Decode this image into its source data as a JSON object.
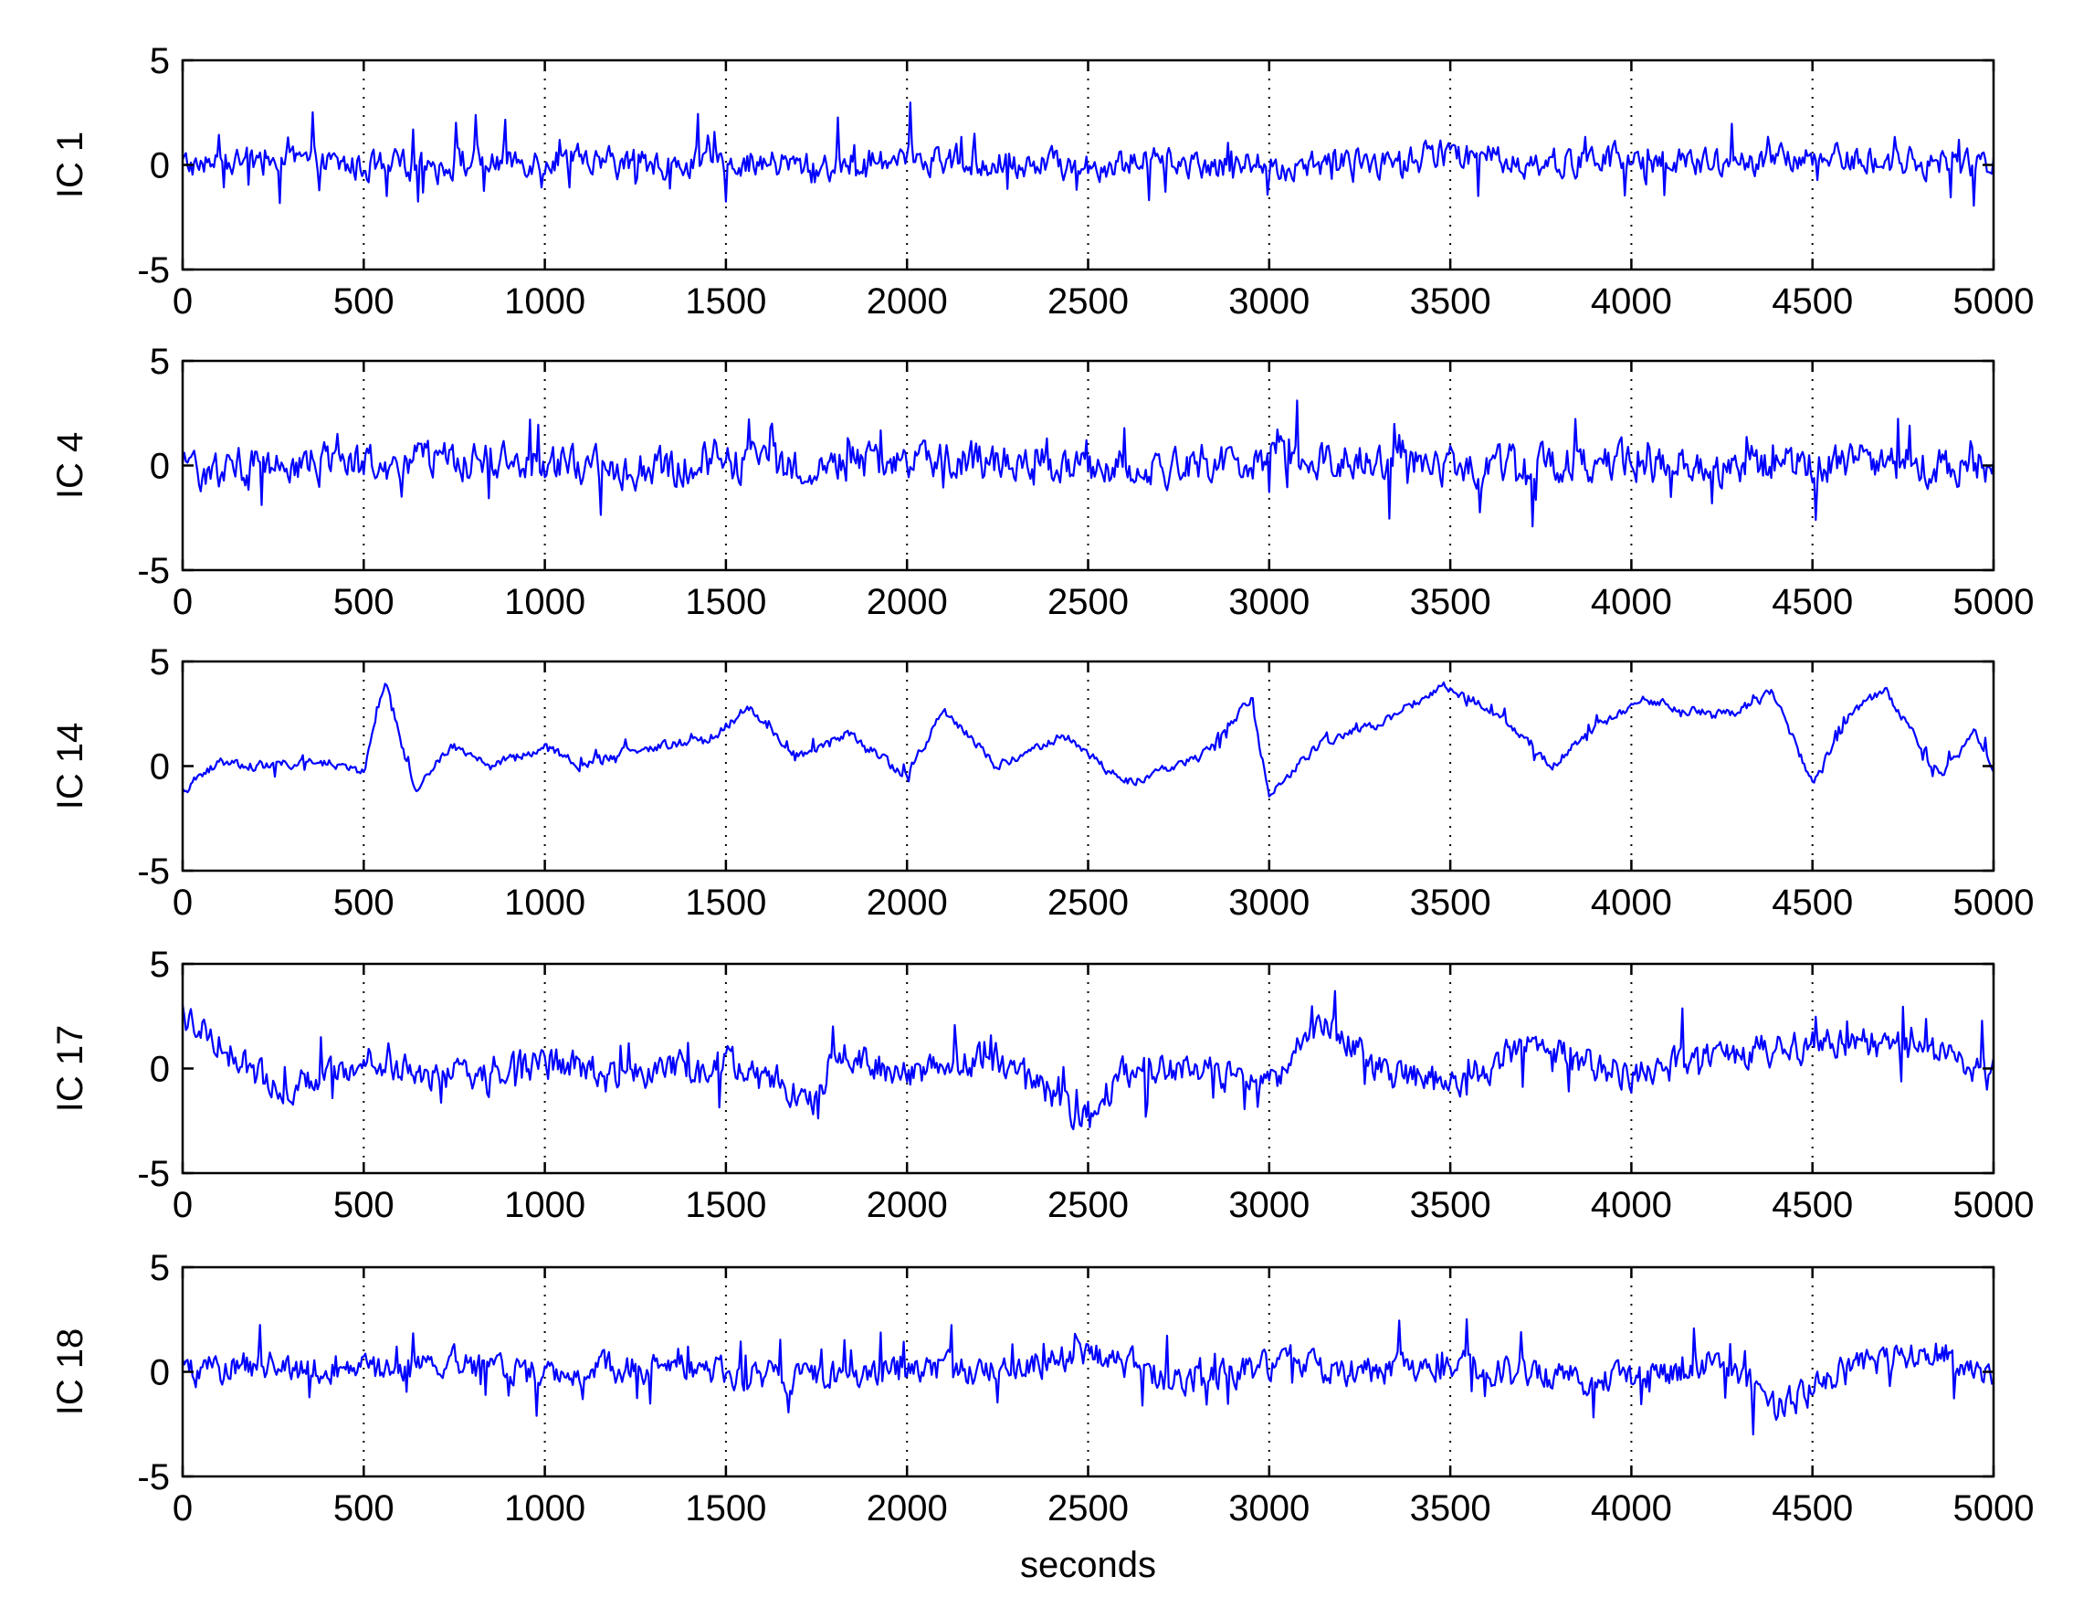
{
  "chart_data": [
    {
      "type": "line",
      "ylabel": "IC 1",
      "xlabel": "",
      "xlim": [
        0,
        5000
      ],
      "ylim": [
        -5,
        5
      ],
      "xticks": [
        "0",
        "500",
        "1000",
        "1500",
        "2000",
        "2500",
        "3000",
        "3500",
        "4000",
        "4500",
        "5000"
      ],
      "yticks": [
        "5",
        "0",
        "-5"
      ],
      "grid": "dotted vertical at x ticks",
      "series": [
        {
          "color": "#0000ff",
          "noise_amplitude": 1.1,
          "x": [
            0,
            250,
            500,
            750,
            1000,
            1250,
            1500,
            1750,
            2000,
            2250,
            2500,
            2750,
            3000,
            3250,
            3500,
            3750,
            4000,
            4250,
            4500,
            4750,
            5000
          ],
          "y": [
            0.0,
            0.2,
            -0.1,
            0.1,
            0.3,
            0.0,
            0.2,
            -0.1,
            0.4,
            0.1,
            0.0,
            0.2,
            -0.1,
            0.0,
            0.5,
            0.1,
            0.2,
            0.0,
            0.3,
            0.2,
            0.0
          ]
        }
      ]
    },
    {
      "type": "line",
      "ylabel": "IC 4",
      "xlabel": "",
      "xlim": [
        0,
        5000
      ],
      "ylim": [
        -5,
        5
      ],
      "xticks": [
        "0",
        "500",
        "1000",
        "1500",
        "2000",
        "2500",
        "3000",
        "3500",
        "4000",
        "4500",
        "5000"
      ],
      "yticks": [
        "5",
        "0",
        "-5"
      ],
      "grid": "dotted vertical at x ticks",
      "series": [
        {
          "color": "#0000ff",
          "noise_amplitude": 1.4,
          "x": [
            0,
            250,
            500,
            750,
            1000,
            1250,
            1500,
            1750,
            2000,
            2250,
            2500,
            2750,
            3000,
            3250,
            3500,
            3750,
            4000,
            4250,
            4500,
            4750,
            5000
          ],
          "y": [
            -0.3,
            0.2,
            0.0,
            0.3,
            0.1,
            -0.2,
            0.1,
            0.0,
            0.3,
            0.2,
            -0.1,
            0.0,
            0.4,
            0.3,
            0.0,
            0.1,
            0.2,
            0.0,
            0.2,
            0.1,
            0.0
          ]
        }
      ]
    },
    {
      "type": "line",
      "ylabel": "IC 14",
      "xlabel": "",
      "xlim": [
        0,
        5000
      ],
      "ylim": [
        -5,
        5
      ],
      "xticks": [
        "0",
        "500",
        "1000",
        "1500",
        "2000",
        "2500",
        "3000",
        "3500",
        "4000",
        "4500",
        "5000"
      ],
      "yticks": [
        "5",
        "0",
        "-5"
      ],
      "grid": "dotted vertical at x ticks",
      "series": [
        {
          "color": "#0000ff",
          "noise_amplitude": 0.35,
          "x": [
            0,
            100,
            200,
            300,
            400,
            500,
            560,
            640,
            740,
            850,
            1000,
            1100,
            1200,
            1320,
            1450,
            1560,
            1700,
            1840,
            2000,
            2100,
            2250,
            2430,
            2600,
            2800,
            2950,
            3000,
            3150,
            3300,
            3480,
            3620,
            3780,
            3890,
            4030,
            4150,
            4280,
            4390,
            4500,
            4600,
            4700,
            4850,
            4950,
            5000
          ],
          "y": [
            -1.2,
            0.2,
            0.0,
            0.1,
            0.2,
            -0.3,
            4.0,
            -1.2,
            1.0,
            0.0,
            0.9,
            0.0,
            0.6,
            1.0,
            1.2,
            2.8,
            0.5,
            1.6,
            -0.5,
            2.7,
            0.0,
            1.5,
            -0.8,
            0.3,
            3.2,
            -1.3,
            1.2,
            2.0,
            3.9,
            2.6,
            0.0,
            1.7,
            3.2,
            2.7,
            2.5,
            3.5,
            -0.8,
            2.4,
            3.7,
            -0.5,
            1.6,
            0.0
          ]
        }
      ]
    },
    {
      "type": "line",
      "ylabel": "IC 17",
      "xlabel": "",
      "xlim": [
        0,
        5000
      ],
      "ylim": [
        -5,
        5
      ],
      "xticks": [
        "0",
        "500",
        "1000",
        "1500",
        "2000",
        "2500",
        "3000",
        "3500",
        "4000",
        "4500",
        "5000"
      ],
      "yticks": [
        "5",
        "0",
        "-5"
      ],
      "grid": "dotted vertical at x ticks",
      "series": [
        {
          "color": "#0000ff",
          "noise_amplitude": 1.2,
          "x": [
            0,
            50,
            150,
            250,
            500,
            700,
            1000,
            1250,
            1500,
            1750,
            1800,
            2000,
            2250,
            2490,
            2600,
            2800,
            3000,
            3150,
            3300,
            3500,
            3700,
            4000,
            4400,
            4700,
            5000
          ],
          "y": [
            2.5,
            2.0,
            0.5,
            -1.0,
            0.5,
            -0.5,
            0.3,
            -0.3,
            0.5,
            -1.5,
            0.8,
            -0.3,
            0.5,
            -2.5,
            0.0,
            0.0,
            -1.0,
            2.5,
            -0.2,
            -0.8,
            1.0,
            -0.3,
            1.0,
            1.2,
            0.0
          ]
        }
      ]
    },
    {
      "type": "line",
      "ylabel": "IC 18",
      "xlabel": "seconds",
      "xlim": [
        0,
        5000
      ],
      "ylim": [
        -5,
        5
      ],
      "xticks": [
        "0",
        "500",
        "1000",
        "1500",
        "2000",
        "2500",
        "3000",
        "3500",
        "4000",
        "4500",
        "5000"
      ],
      "yticks": [
        "5",
        "0",
        "-5"
      ],
      "grid": "dotted vertical at x ticks",
      "series": [
        {
          "color": "#0000ff",
          "noise_amplitude": 1.1,
          "x": [
            0,
            250,
            500,
            750,
            1000,
            1250,
            1500,
            1750,
            2000,
            2250,
            2500,
            2750,
            3000,
            3250,
            3500,
            3750,
            4000,
            4250,
            4400,
            4600,
            4840,
            5000
          ],
          "y": [
            0.0,
            0.3,
            0.0,
            0.4,
            0.1,
            0.2,
            0.0,
            -0.3,
            0.2,
            0.0,
            1.0,
            -0.5,
            0.3,
            0.0,
            0.2,
            0.0,
            -0.5,
            0.5,
            -1.8,
            0.2,
            1.0,
            0.0
          ]
        }
      ]
    }
  ]
}
